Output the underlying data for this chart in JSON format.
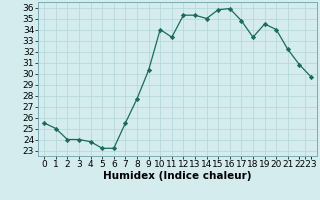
{
  "x": [
    0,
    1,
    2,
    3,
    4,
    5,
    6,
    7,
    8,
    9,
    10,
    11,
    12,
    13,
    14,
    15,
    16,
    17,
    18,
    19,
    20,
    21,
    22,
    23
  ],
  "y": [
    25.5,
    25.0,
    24.0,
    24.0,
    23.8,
    23.2,
    23.2,
    25.5,
    27.7,
    30.3,
    34.0,
    33.3,
    35.3,
    35.3,
    35.0,
    35.8,
    35.9,
    34.8,
    33.3,
    34.5,
    34.0,
    32.2,
    30.8,
    29.7
  ],
  "line_color": "#1a6b5a",
  "marker": "D",
  "marker_size": 2.2,
  "bg_color": "#d4ecee",
  "grid_color": "#b8d8dc",
  "xlabel": "Humidex (Indice chaleur)",
  "xlim": [
    -0.5,
    23.5
  ],
  "ylim": [
    22.5,
    36.5
  ],
  "yticks": [
    23,
    24,
    25,
    26,
    27,
    28,
    29,
    30,
    31,
    32,
    33,
    34,
    35,
    36
  ],
  "xlabel_fontsize": 7.5,
  "tick_fontsize": 6.5,
  "linewidth": 0.9
}
